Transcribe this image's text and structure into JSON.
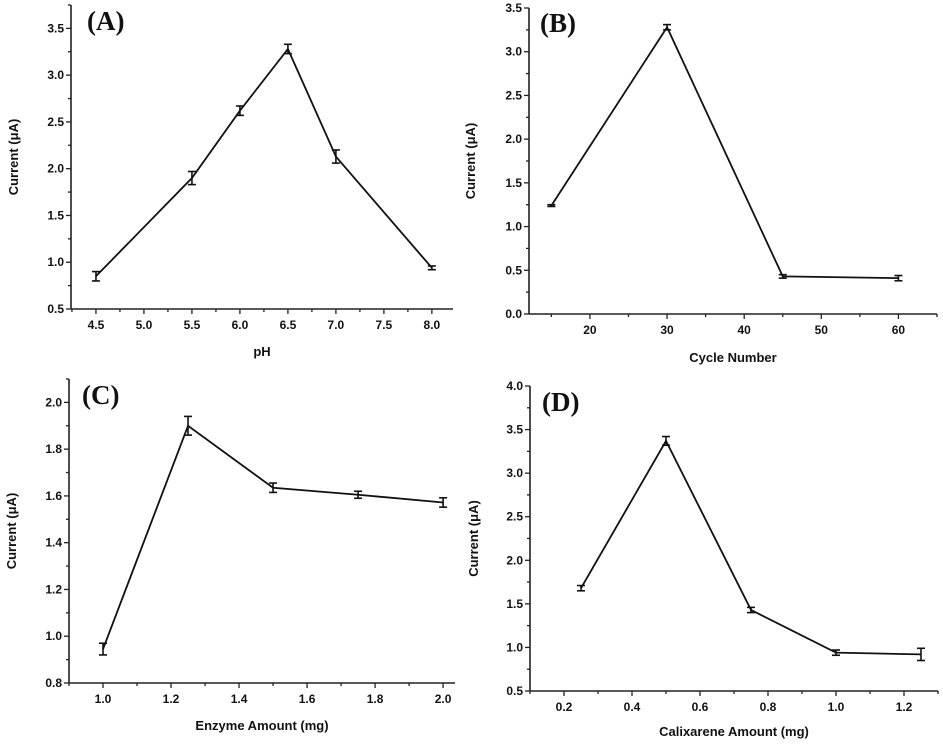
{
  "chart_data": [
    {
      "type": "line",
      "panel_label": "(A)",
      "xlabel": "pH",
      "ylabel": "Current (μA)",
      "xlim": [
        4.24,
        8.22
      ],
      "ylim": [
        0.5,
        3.75
      ],
      "xticks": [
        4.5,
        5.0,
        5.5,
        6.0,
        6.5,
        7.0,
        7.5,
        8.0
      ],
      "xtick_labels": [
        "4.5",
        "5.0",
        "5.5",
        "6.0",
        "6.5",
        "7.0",
        "7.5",
        "8.0"
      ],
      "yticks": [
        0.5,
        1.0,
        1.5,
        2.0,
        2.5,
        3.0,
        3.5
      ],
      "ytick_labels": [
        "0.5",
        "1.0",
        "1.5",
        "2.0",
        "2.5",
        "3.0",
        "3.5"
      ],
      "x": [
        4.5,
        5.5,
        6.0,
        6.5,
        7.0,
        8.0
      ],
      "y": [
        0.85,
        1.9,
        2.62,
        3.28,
        2.13,
        0.94
      ],
      "yerr": [
        0.05,
        0.07,
        0.05,
        0.05,
        0.07,
        0.02
      ],
      "grid": false,
      "color": "#111111"
    },
    {
      "type": "line",
      "panel_label": "(B)",
      "xlabel": "Cycle Number",
      "ylabel": "Current (μA)",
      "xlim": [
        12.1,
        65
      ],
      "ylim": [
        0.0,
        3.5
      ],
      "xticks": [
        20,
        30,
        40,
        50,
        60
      ],
      "xtick_labels": [
        "20",
        "30",
        "40",
        "50",
        "60"
      ],
      "yticks": [
        0.0,
        0.5,
        1.0,
        1.5,
        2.0,
        2.5,
        3.0,
        3.5
      ],
      "ytick_labels": [
        "0.0",
        "0.5",
        "1.0",
        "1.5",
        "2.0",
        "2.5",
        "3.0",
        "3.5"
      ],
      "x": [
        15,
        30,
        45,
        60
      ],
      "y": [
        1.24,
        3.28,
        0.43,
        0.41
      ],
      "yerr": [
        0.01,
        0.03,
        0.02,
        0.03
      ],
      "grid": false,
      "color": "#111111"
    },
    {
      "type": "line",
      "panel_label": "(C)",
      "xlabel": "Enzyme Amount (mg)",
      "ylabel": "Current (μA)",
      "xlim": [
        0.9,
        2.035
      ],
      "ylim": [
        0.8,
        2.1
      ],
      "xticks": [
        1.0,
        1.2,
        1.4,
        1.6,
        1.8,
        2.0
      ],
      "xtick_labels": [
        "1.0",
        "1.2",
        "1.4",
        "1.6",
        "1.8",
        "2.0"
      ],
      "yticks": [
        0.8,
        1.0,
        1.2,
        1.4,
        1.6,
        1.8,
        2.0
      ],
      "ytick_labels": [
        "0.8",
        "1.0",
        "1.2",
        "1.4",
        "1.6",
        "1.8",
        "2.0"
      ],
      "x": [
        1.0,
        1.25,
        1.5,
        1.75,
        2.0
      ],
      "y": [
        0.945,
        1.9,
        1.635,
        1.605,
        1.572
      ],
      "yerr": [
        0.025,
        0.04,
        0.02,
        0.015,
        0.02
      ],
      "grid": false,
      "color": "#111111"
    },
    {
      "type": "line",
      "panel_label": "(D)",
      "xlabel": "Calixarene Amount (mg)",
      "ylabel": "Current (μA)",
      "xlim": [
        0.1,
        1.3
      ],
      "ylim": [
        0.5,
        4.0
      ],
      "xticks": [
        0.2,
        0.4,
        0.6,
        0.8,
        1.0,
        1.2
      ],
      "xtick_labels": [
        "0.2",
        "0.4",
        "0.6",
        "0.8",
        "1.0",
        "1.2"
      ],
      "yticks": [
        0.5,
        1.0,
        1.5,
        2.0,
        2.5,
        3.0,
        3.5,
        4.0
      ],
      "ytick_labels": [
        "0.5",
        "1.0",
        "1.5",
        "2.0",
        "2.5",
        "3.0",
        "3.5",
        "4.0"
      ],
      "x": [
        0.25,
        0.5,
        0.75,
        1.0,
        1.25
      ],
      "y": [
        1.68,
        3.37,
        1.43,
        0.94,
        0.92
      ],
      "yerr": [
        0.03,
        0.05,
        0.03,
        0.03,
        0.07
      ],
      "grid": false,
      "color": "#111111"
    }
  ]
}
